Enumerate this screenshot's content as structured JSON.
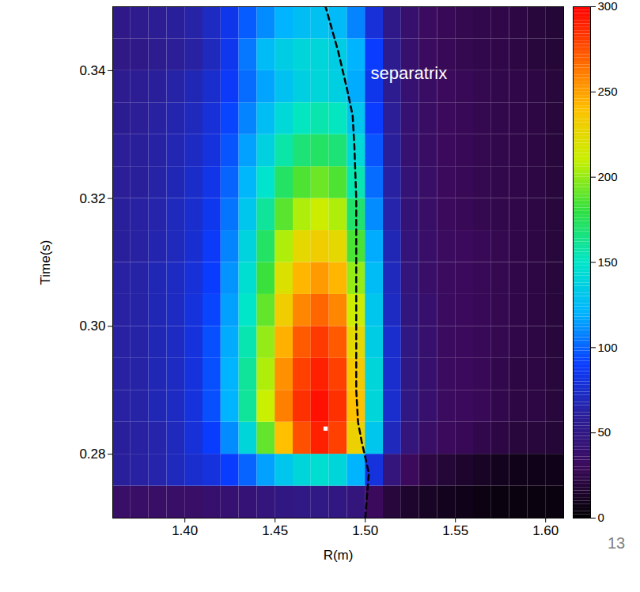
{
  "chart_data": {
    "type": "heatmap",
    "xlabel": "R(m)",
    "ylabel": "Time(s)",
    "xlim": [
      1.36,
      1.61
    ],
    "ylim": [
      0.27,
      0.35
    ],
    "xticks": [
      {
        "value": 1.4,
        "label": "1.40"
      },
      {
        "value": 1.45,
        "label": "1.45"
      },
      {
        "value": 1.5,
        "label": "1.50"
      },
      {
        "value": 1.55,
        "label": "1.55"
      },
      {
        "value": 1.6,
        "label": "1.60"
      }
    ],
    "yticks": [
      {
        "value": 0.28,
        "label": "0.28"
      },
      {
        "value": 0.3,
        "label": "0.30"
      },
      {
        "value": 0.32,
        "label": "0.32"
      },
      {
        "value": 0.34,
        "label": "0.34"
      }
    ],
    "x": [
      1.365,
      1.375,
      1.385,
      1.395,
      1.405,
      1.415,
      1.425,
      1.435,
      1.445,
      1.455,
      1.465,
      1.475,
      1.485,
      1.495,
      1.505,
      1.515,
      1.525,
      1.535,
      1.545,
      1.555,
      1.565,
      1.575,
      1.585,
      1.595,
      1.605
    ],
    "y": [
      0.2725,
      0.2775,
      0.2825,
      0.2875,
      0.2925,
      0.2975,
      0.3025,
      0.3075,
      0.3125,
      0.3175,
      0.3225,
      0.3275,
      0.3325,
      0.3375,
      0.3425,
      0.3475
    ],
    "values": [
      [
        35,
        35,
        35,
        35,
        35,
        38,
        40,
        42,
        45,
        48,
        50,
        50,
        48,
        45,
        30,
        20,
        15,
        12,
        10,
        8,
        6,
        5,
        5,
        5,
        5
      ],
      [
        60,
        62,
        65,
        70,
        75,
        80,
        90,
        100,
        115,
        130,
        140,
        145,
        140,
        120,
        80,
        45,
        30,
        22,
        18,
        15,
        12,
        10,
        8,
        8,
        8
      ],
      [
        60,
        62,
        65,
        70,
        78,
        90,
        110,
        140,
        190,
        240,
        275,
        290,
        280,
        230,
        130,
        70,
        45,
        35,
        30,
        28,
        25,
        22,
        20,
        20,
        18
      ],
      [
        62,
        64,
        68,
        72,
        80,
        95,
        120,
        160,
        210,
        260,
        285,
        295,
        285,
        240,
        140,
        75,
        48,
        38,
        32,
        30,
        28,
        25,
        22,
        22,
        20
      ],
      [
        62,
        64,
        68,
        72,
        80,
        95,
        120,
        160,
        205,
        255,
        280,
        290,
        280,
        235,
        140,
        75,
        48,
        38,
        32,
        30,
        28,
        25,
        22,
        22,
        20
      ],
      [
        62,
        64,
        68,
        72,
        80,
        95,
        118,
        155,
        200,
        245,
        272,
        282,
        272,
        225,
        135,
        75,
        48,
        38,
        32,
        30,
        28,
        26,
        24,
        22,
        20
      ],
      [
        62,
        64,
        68,
        72,
        80,
        92,
        115,
        150,
        190,
        232,
        258,
        268,
        258,
        212,
        130,
        72,
        46,
        38,
        32,
        30,
        28,
        26,
        24,
        22,
        20
      ],
      [
        62,
        64,
        68,
        72,
        78,
        90,
        112,
        145,
        182,
        220,
        243,
        252,
        243,
        200,
        125,
        70,
        45,
        36,
        32,
        30,
        28,
        26,
        24,
        22,
        20
      ],
      [
        60,
        62,
        66,
        70,
        76,
        88,
        108,
        138,
        172,
        205,
        225,
        232,
        225,
        185,
        118,
        68,
        44,
        36,
        32,
        30,
        28,
        26,
        24,
        22,
        20
      ],
      [
        60,
        62,
        65,
        70,
        75,
        85,
        104,
        130,
        160,
        188,
        205,
        212,
        205,
        170,
        110,
        65,
        42,
        35,
        30,
        28,
        26,
        25,
        24,
        22,
        20
      ],
      [
        58,
        60,
        64,
        68,
        74,
        83,
        100,
        122,
        148,
        172,
        186,
        192,
        186,
        155,
        102,
        62,
        42,
        35,
        30,
        28,
        26,
        25,
        24,
        22,
        20
      ],
      [
        58,
        60,
        63,
        67,
        72,
        80,
        96,
        115,
        137,
        157,
        168,
        172,
        168,
        142,
        96,
        60,
        40,
        34,
        30,
        28,
        26,
        25,
        24,
        22,
        20
      ],
      [
        56,
        58,
        62,
        66,
        70,
        78,
        92,
        108,
        126,
        142,
        152,
        156,
        152,
        130,
        90,
        58,
        40,
        34,
        30,
        28,
        26,
        25,
        24,
        22,
        20
      ],
      [
        55,
        57,
        60,
        64,
        68,
        75,
        88,
        102,
        116,
        128,
        136,
        140,
        136,
        118,
        84,
        55,
        40,
        34,
        30,
        28,
        26,
        25,
        24,
        22,
        20
      ],
      [
        50,
        52,
        55,
        58,
        62,
        70,
        85,
        105,
        125,
        135,
        140,
        140,
        135,
        120,
        90,
        55,
        38,
        32,
        28,
        26,
        25,
        24,
        22,
        20,
        18
      ],
      [
        52,
        54,
        57,
        60,
        64,
        72,
        84,
        98,
        110,
        120,
        126,
        128,
        124,
        108,
        78,
        52,
        38,
        32,
        28,
        26,
        25,
        24,
        22,
        20,
        18
      ]
    ],
    "colorbar": {
      "range": [
        0,
        300
      ],
      "ticks": [
        0,
        50,
        100,
        150,
        200,
        250,
        300
      ]
    },
    "separatrix": {
      "x": [
        1.5,
        1.502,
        1.498,
        1.496,
        1.495,
        1.495,
        1.495,
        1.494,
        1.493,
        1.49,
        1.485,
        1.478
      ],
      "y": [
        0.27,
        0.277,
        0.282,
        0.285,
        0.29,
        0.3,
        0.32,
        0.328,
        0.333,
        0.337,
        0.343,
        0.35
      ]
    },
    "annotations": [
      {
        "text": "separatrix",
        "x": 1.503,
        "y": 0.3395
      }
    ],
    "peak": {
      "x": 1.478,
      "y": 0.284
    },
    "page_number": "13"
  }
}
